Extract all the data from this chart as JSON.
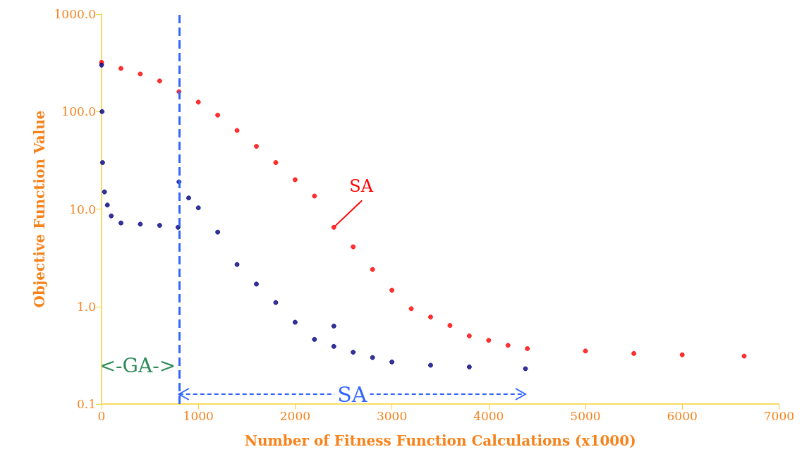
{
  "chart_data": {
    "type": "scatter",
    "xlabel": "Number of Fitness Function Calculations (x1000)",
    "ylabel": "Objective Function Value",
    "log": "y",
    "grid": false,
    "marker": "circle",
    "xlim": [
      0,
      7000
    ],
    "xticks": [
      0,
      1000,
      2000,
      3000,
      4000,
      5000,
      6000,
      7000
    ],
    "ylim": [
      0.1,
      1000
    ],
    "yticks": [
      {
        "value": 0.1,
        "label": "0.1"
      },
      {
        "value": 1,
        "label": "1.0"
      },
      {
        "value": 10,
        "label": "10.0"
      },
      {
        "value": 100,
        "label": "100.0"
      },
      {
        "value": 1000,
        "label": "1000.0"
      }
    ],
    "series": [
      {
        "color": "#ff0000",
        "x": [
          0,
          200,
          400,
          600,
          800,
          1000,
          1200,
          1400,
          1600,
          1800,
          2000,
          2200,
          2400,
          2600,
          2800,
          3000,
          3200,
          3400,
          3600,
          3800,
          4000,
          4200,
          4400,
          5000,
          5500,
          6000,
          6640
        ],
        "values": [
          320,
          277,
          243,
          206,
          160,
          125,
          92,
          64,
          44,
          30,
          20,
          13.6,
          6.5,
          4.1,
          2.4,
          1.47,
          0.95,
          0.78,
          0.64,
          0.5,
          0.45,
          0.4,
          0.37,
          0.35,
          0.33,
          0.32,
          0.31
        ]
      },
      {
        "color": "#000080",
        "x": [
          0,
          5,
          10,
          30,
          60,
          100,
          200,
          400,
          600,
          790,
          800,
          900,
          1000,
          1200,
          1400,
          1600,
          1800,
          2000,
          2200,
          2400,
          2400,
          2600,
          2800,
          3000,
          3400,
          3800,
          4380
        ],
        "values": [
          300,
          100,
          30,
          15,
          11,
          8.5,
          7.2,
          7,
          6.8,
          6.5,
          19,
          13,
          10.3,
          5.8,
          2.7,
          1.7,
          1.1,
          0.69,
          0.46,
          0.39,
          0.63,
          0.34,
          0.3,
          0.27,
          0.25,
          0.24,
          0.23
        ]
      }
    ],
    "ref_lines": [
      {
        "axis": "x",
        "value": 800,
        "color": "#3366ff",
        "line_style": "dashed"
      }
    ],
    "annotations": [
      {
        "text": "SA",
        "x": 2400,
        "y": 6.5
      },
      "<-GA->",
      "SA"
    ]
  }
}
